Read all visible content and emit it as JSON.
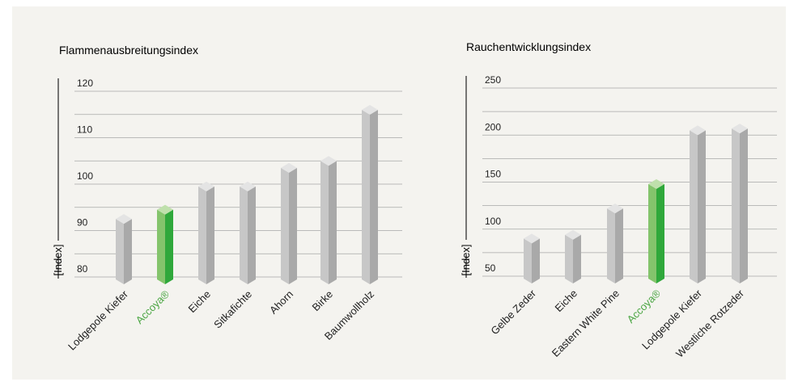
{
  "colors": {
    "panel_bg": "#f4f3ef",
    "text": "#222222",
    "grid": "#a7a7a7",
    "bar_front": "#c7c7c7",
    "bar_side": "#a9a9a9",
    "bar_top": "#e4e4e4",
    "accent_front": "#84c46c",
    "accent_side": "#2fa83b",
    "accent_top": "#bfe0ac",
    "accent_label": "#4aa542"
  },
  "chart_data": [
    {
      "type": "bar",
      "title": "Flammenausbreitungsindex",
      "ylabel": "[Index]",
      "xlabel": "",
      "ylim": [
        80,
        120
      ],
      "yticks": [
        80,
        90,
        100,
        110,
        120
      ],
      "grid": true,
      "categories": [
        "Lodgepole Kiefer",
        "Accoya®",
        "Eiche",
        "Sitkafichte",
        "Ahorn",
        "Birke",
        "Baumwollholz"
      ],
      "values": [
        92.5,
        94.5,
        99.5,
        99.5,
        103.5,
        105,
        116
      ],
      "highlight": "Accoya®"
    },
    {
      "type": "bar",
      "title": "Rauchentwicklungsindex",
      "ylabel": "[Index]",
      "xlabel": "",
      "ylim": [
        50,
        250
      ],
      "yticks": [
        50,
        100,
        150,
        200,
        250
      ],
      "grid": true,
      "categories": [
        "Gelbe Zeder",
        "Eiche",
        "Eastern White Pine",
        "Accoya®",
        "Lodgepole Kiefer",
        "Westliche Rotzeder"
      ],
      "values": [
        90,
        94,
        122,
        148,
        205,
        207
      ],
      "highlight": "Accoya®"
    }
  ]
}
